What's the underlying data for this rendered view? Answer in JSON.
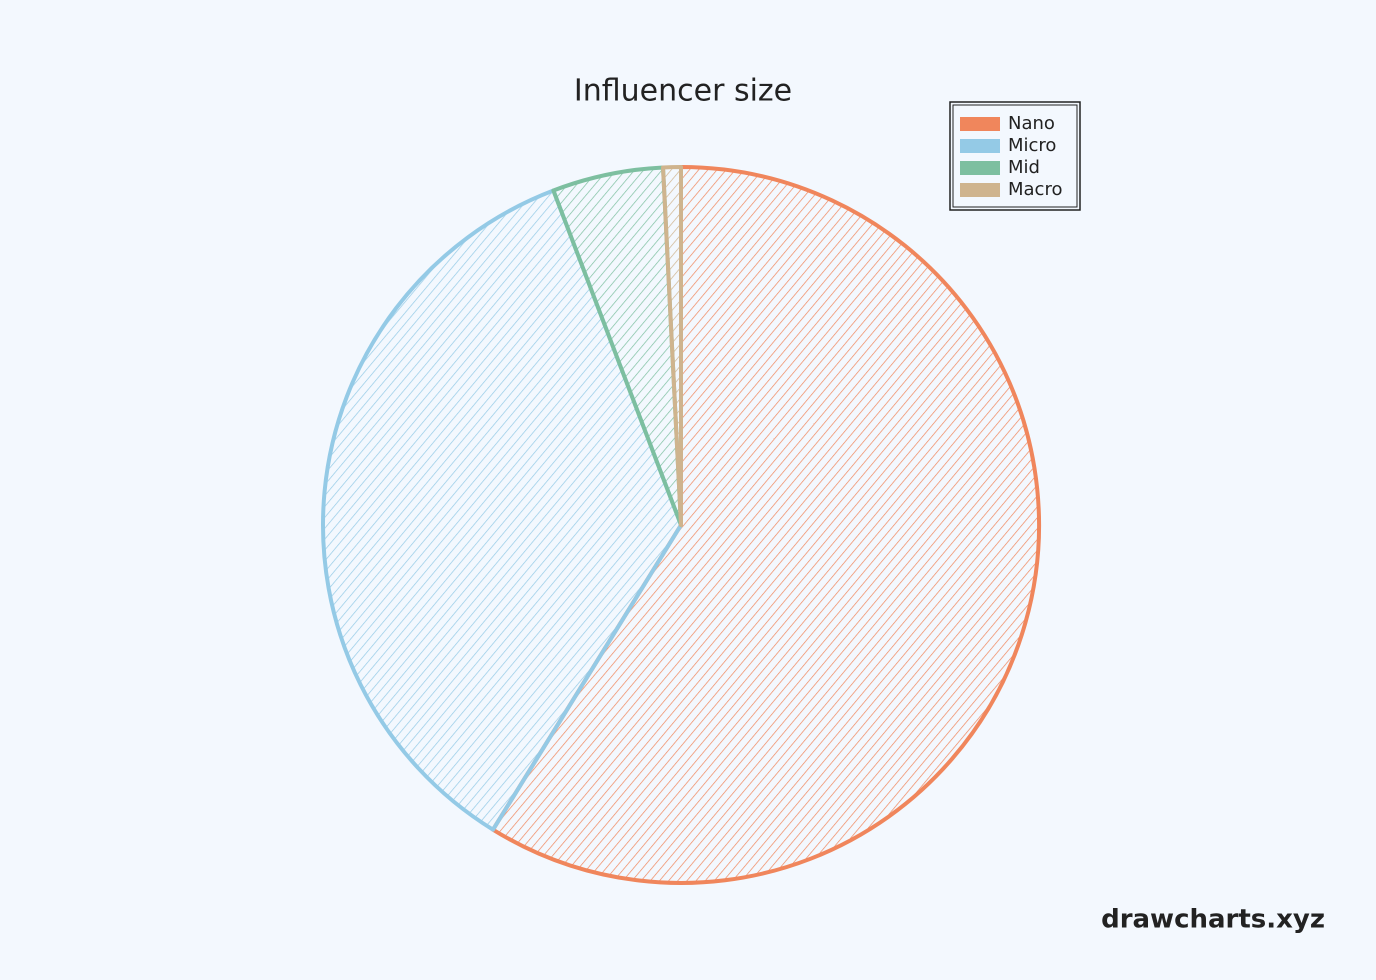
{
  "chart_data": {
    "type": "pie",
    "title": "Influencer size",
    "categories": [
      "Nano",
      "Micro",
      "Mid",
      "Macro"
    ],
    "values": [
      58.8,
      35.4,
      5,
      0.8
    ],
    "colors": [
      "#f0865c",
      "#94cae6",
      "#7dbfa0",
      "#cfb48e"
    ],
    "legend": "top-right",
    "watermark": "drawcharts.xyz"
  }
}
